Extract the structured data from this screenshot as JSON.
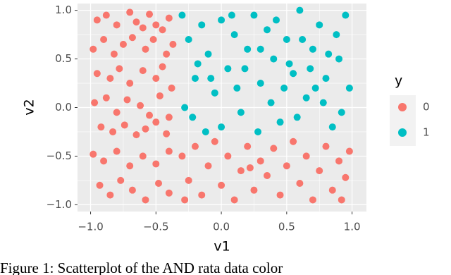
{
  "chart_data": {
    "type": "scatter",
    "x_label": "v1",
    "y_label": "v2",
    "legend_title": "y",
    "legend": "right",
    "grid": true,
    "caption": "Figure 1: Scatterplot of the AND rata data color",
    "xlim": [
      -1.1,
      1.11
    ],
    "ylim": [
      -1.07,
      1.07
    ],
    "xticks": [
      {
        "value": -1,
        "label": "−1.0"
      },
      {
        "value": -0.5,
        "label": "−0.5"
      },
      {
        "value": 0,
        "label": "0.0"
      },
      {
        "value": 0.5,
        "label": "0.5"
      },
      {
        "value": 1,
        "label": "1.0"
      }
    ],
    "yticks": [
      {
        "value": -1,
        "label": "−1.0"
      },
      {
        "value": -0.5,
        "label": "−0.5"
      },
      {
        "value": 0,
        "label": "0.0"
      },
      {
        "value": 0.5,
        "label": "0.5"
      },
      {
        "value": 1,
        "label": "1.0"
      }
    ],
    "series": [
      {
        "name": "0",
        "color": "#F8766D",
        "x": [
          -0.95,
          -0.88,
          -0.8,
          -0.7,
          -0.65,
          -0.6,
          -0.55,
          -0.5,
          -0.45,
          -0.4,
          -0.98,
          -0.9,
          -0.82,
          -0.75,
          -0.68,
          -0.58,
          -0.52,
          -0.42,
          -0.37,
          -0.95,
          -0.85,
          -0.78,
          -0.7,
          -0.6,
          -0.5,
          -0.45,
          -0.38,
          -0.97,
          -0.88,
          -0.8,
          -0.72,
          -0.62,
          -0.55,
          -0.47,
          -0.4,
          -0.92,
          -0.83,
          -0.74,
          -0.65,
          -0.58,
          -0.5,
          -0.42,
          -0.98,
          -0.9,
          -0.8,
          -0.7,
          -0.6,
          -0.5,
          -0.4,
          -0.93,
          -0.85,
          -0.77,
          -0.68,
          -0.58,
          -0.48,
          -0.4,
          -0.3,
          -0.25,
          -0.2,
          -0.15,
          -0.1,
          -0.05,
          0.0,
          0.05,
          0.1,
          0.15,
          0.2,
          0.25,
          0.3,
          0.35,
          0.4,
          0.45,
          0.5,
          0.55,
          0.6,
          0.65,
          0.7,
          0.75,
          0.8,
          0.85,
          0.9,
          0.95,
          0.98,
          0.92,
          -0.28,
          0.22
        ],
        "values": [
          0.9,
          0.95,
          0.85,
          0.98,
          0.88,
          0.82,
          0.96,
          0.85,
          0.8,
          0.92,
          0.6,
          0.7,
          0.55,
          0.65,
          0.72,
          0.6,
          0.7,
          0.55,
          0.65,
          0.35,
          0.3,
          0.4,
          0.25,
          0.38,
          0.3,
          0.42,
          0.2,
          0.05,
          0.1,
          -0.05,
          0.08,
          0.02,
          -0.08,
          0.12,
          -0.1,
          -0.2,
          -0.25,
          -0.18,
          -0.28,
          -0.22,
          -0.15,
          -0.27,
          -0.48,
          -0.55,
          -0.45,
          -0.6,
          -0.5,
          -0.58,
          -0.45,
          -0.8,
          -0.9,
          -0.75,
          -0.85,
          -0.95,
          -0.78,
          -0.88,
          -0.5,
          -0.75,
          -0.4,
          -0.9,
          -0.6,
          -0.35,
          -0.8,
          -0.5,
          -0.95,
          -0.65,
          -0.4,
          -0.85,
          -0.55,
          -0.7,
          -0.42,
          -0.9,
          -0.6,
          -0.35,
          -0.78,
          -0.5,
          -0.95,
          -0.65,
          -0.4,
          -0.85,
          -0.55,
          -0.72,
          -0.45,
          -0.95,
          -0.95,
          -0.62
        ]
      },
      {
        "name": "1",
        "color": "#00BFC4",
        "x": [
          -0.3,
          -0.25,
          -0.2,
          -0.15,
          -0.1,
          -0.05,
          0.0,
          0.05,
          0.1,
          0.15,
          0.2,
          0.25,
          0.3,
          0.35,
          0.4,
          0.45,
          0.5,
          0.55,
          0.6,
          0.65,
          0.7,
          0.75,
          0.8,
          0.85,
          0.9,
          0.95,
          0.98,
          -0.28,
          -0.22,
          -0.12,
          0.0,
          0.12,
          0.28,
          0.38,
          0.48,
          0.58,
          0.68,
          0.78,
          0.88,
          0.3,
          -0.18,
          0.08,
          0.42,
          0.52,
          0.72,
          0.92,
          -0.08,
          0.18,
          0.62,
          0.82
        ],
        "values": [
          0.95,
          0.7,
          0.3,
          0.85,
          0.55,
          0.15,
          0.9,
          0.4,
          0.75,
          -0.05,
          0.6,
          0.95,
          0.25,
          0.8,
          0.5,
          -0.15,
          0.7,
          0.35,
          1.0,
          0.1,
          0.6,
          0.85,
          0.3,
          -0.2,
          0.5,
          0.95,
          0.2,
          0.0,
          -0.1,
          -0.25,
          -0.2,
          0.2,
          -0.25,
          0.05,
          0.2,
          -0.1,
          0.4,
          0.05,
          0.75,
          0.6,
          0.45,
          0.95,
          0.9,
          0.45,
          0.2,
          -0.05,
          0.3,
          0.4,
          0.7,
          0.55
        ]
      }
    ]
  }
}
